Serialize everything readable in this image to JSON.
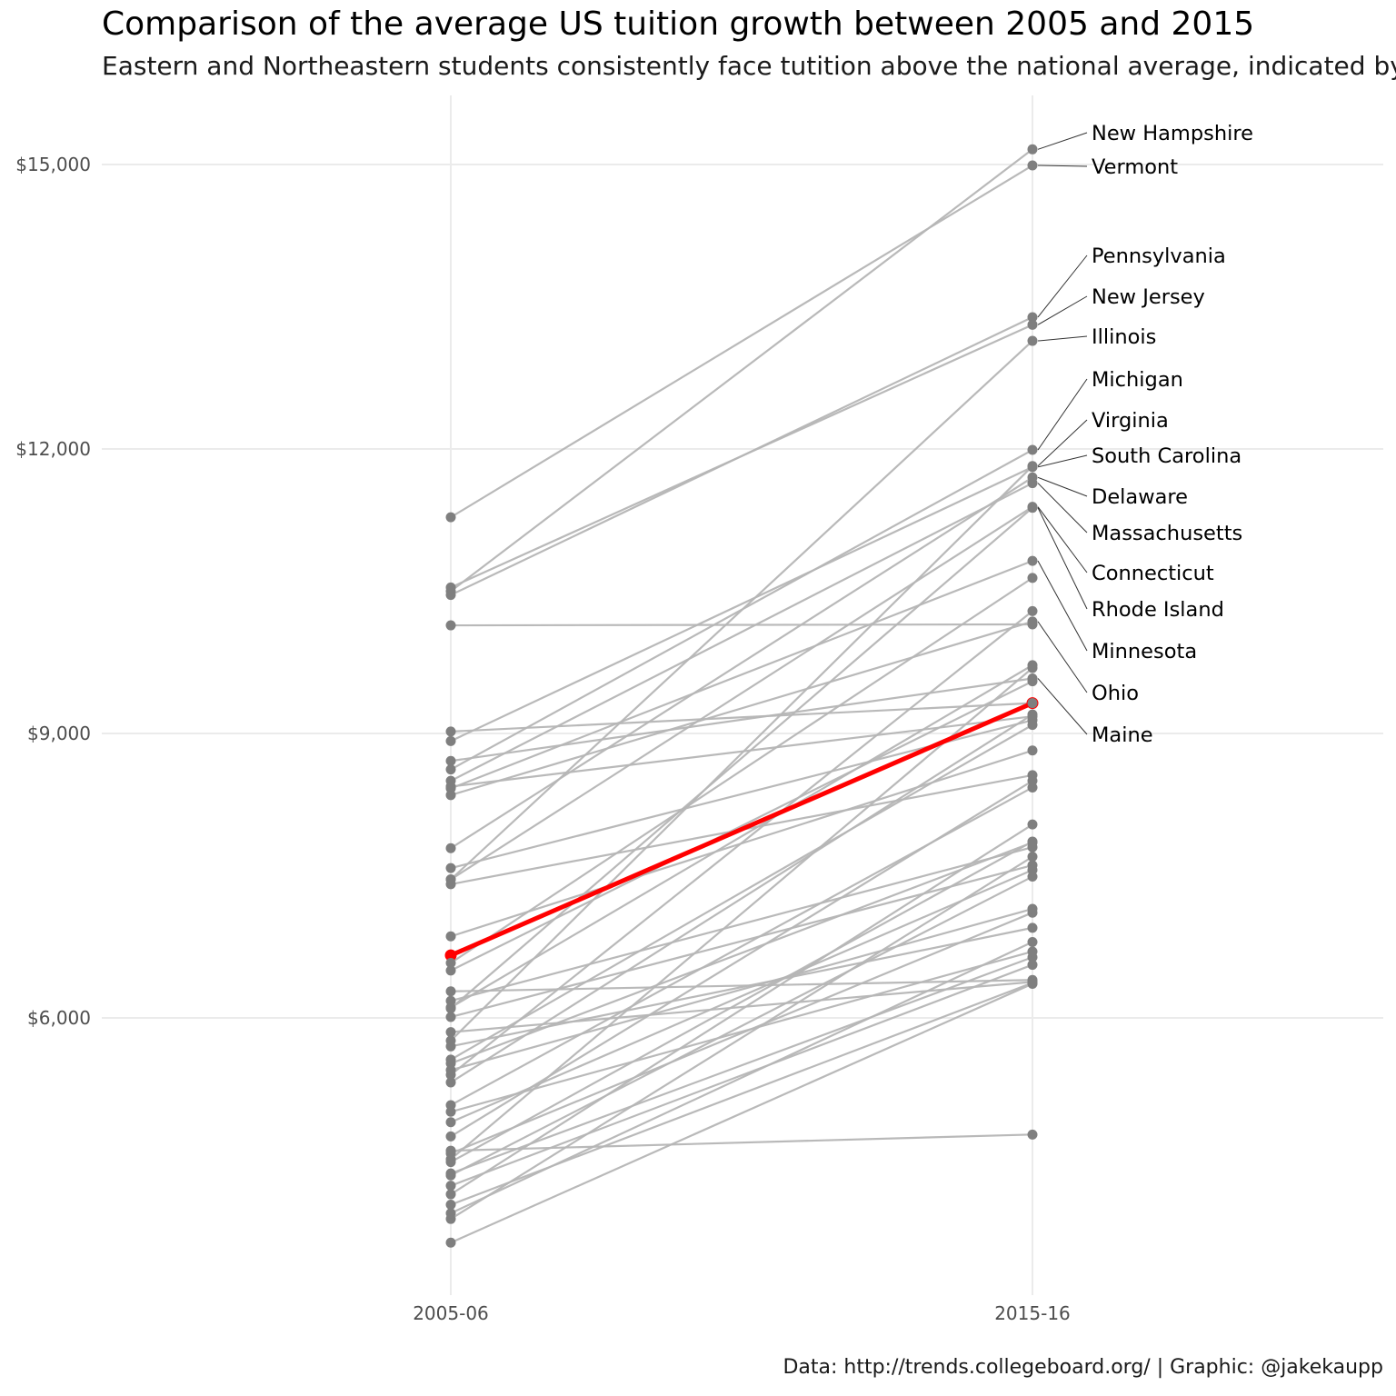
{
  "title": "Comparison of the average US tuition growth between 2005 and 2015",
  "subtitle": "Eastern and Northeastern students consistently face tutition above the national average, indicated by t",
  "caption": "Data: http://trends.collegeboard.org/ | Graphic: @jakekaupp",
  "chart_data": {
    "type": "line",
    "x": [
      "2005-06",
      "2015-16"
    ],
    "ylim": [
      2800,
      15800
    ],
    "yticks": [
      6000,
      9000,
      12000,
      15000
    ],
    "ytick_labels": [
      "$6,000",
      "$9,000",
      "$12,000",
      "$15,000"
    ],
    "grid": true,
    "colors": {
      "state": "#7f7f7f",
      "state_line": "#b5b5b5",
      "average": "#ff0000",
      "grid": "#ebebeb",
      "leader": "#333333"
    },
    "average": {
      "values": [
        6660,
        9320
      ]
    },
    "series": [
      {
        "name": "New Hampshire",
        "values": [
          10500,
          15160
        ]
      },
      {
        "name": "Vermont",
        "values": [
          11280,
          14990
        ]
      },
      {
        "name": "Pennsylvania",
        "values": [
          10460,
          13390
        ]
      },
      {
        "name": "New Jersey",
        "values": [
          10540,
          13310
        ]
      },
      {
        "name": "Illinois",
        "values": [
          7460,
          13140
        ]
      },
      {
        "name": "Michigan",
        "values": [
          8620,
          11990
        ]
      },
      {
        "name": "Virginia",
        "values": [
          5760,
          11820
        ]
      },
      {
        "name": "South Carolina",
        "values": [
          8920,
          11810
        ]
      },
      {
        "name": "Delaware",
        "values": [
          7790,
          11700
        ]
      },
      {
        "name": "Massachusetts",
        "values": [
          8500,
          11640
        ]
      },
      {
        "name": "Connecticut",
        "values": [
          7460,
          11390
        ]
      },
      {
        "name": "Rhode Island",
        "values": [
          6100,
          11380
        ]
      },
      {
        "name": "Minnesota",
        "values": [
          8420,
          10820
        ]
      },
      {
        "name": "Ohio",
        "values": [
          8350,
          10180
        ]
      },
      {
        "name": "Maine",
        "values": [
          8710,
          9580
        ]
      },
      {
        "values": [
          10140,
          10150
        ]
      },
      {
        "values": [
          6580,
          10640
        ]
      },
      {
        "values": [
          5400,
          10290
        ]
      },
      {
        "values": [
          9020,
          9320
        ]
      },
      {
        "values": [
          7580,
          9140
        ]
      },
      {
        "values": [
          6110,
          9720
        ]
      },
      {
        "values": [
          6500,
          9550
        ]
      },
      {
        "values": [
          4510,
          9690
        ]
      },
      {
        "values": [
          5320,
          9200
        ]
      },
      {
        "values": [
          8440,
          9180
        ]
      },
      {
        "values": [
          5560,
          9090
        ]
      },
      {
        "values": [
          6860,
          8820
        ]
      },
      {
        "values": [
          7410,
          8560
        ]
      },
      {
        "values": [
          4750,
          8500
        ]
      },
      {
        "values": [
          5080,
          8430
        ]
      },
      {
        "values": [
          4480,
          7860
        ]
      },
      {
        "values": [
          5520,
          7850
        ]
      },
      {
        "values": [
          4140,
          8040
        ]
      },
      {
        "values": [
          6010,
          7610
        ]
      },
      {
        "values": [
          3880,
          7700
        ]
      },
      {
        "values": [
          4900,
          7560
        ]
      },
      {
        "values": [
          4340,
          7490
        ]
      },
      {
        "values": [
          4570,
          7110
        ]
      },
      {
        "values": [
          5450,
          7150
        ]
      },
      {
        "values": [
          5700,
          6950
        ]
      },
      {
        "values": [
          3940,
          6800
        ]
      },
      {
        "values": [
          4360,
          6640
        ]
      },
      {
        "values": [
          4230,
          6560
        ]
      },
      {
        "values": [
          6280,
          6400
        ]
      },
      {
        "values": [
          5850,
          6380
        ]
      },
      {
        "values": [
          4030,
          6370
        ]
      },
      {
        "values": [
          3630,
          6360
        ]
      },
      {
        "values": [
          4600,
          4770
        ]
      },
      {
        "values": [
          5010,
          6700
        ]
      },
      {
        "values": [
          6180,
          7800
        ]
      }
    ]
  }
}
